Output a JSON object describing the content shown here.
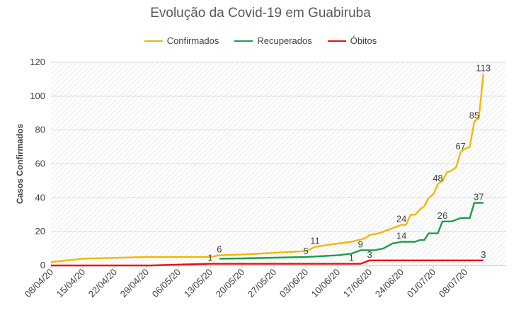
{
  "chart_data": {
    "type": "line",
    "title": "Evolução da Covid-19 em Guabiruba",
    "xlabel": "",
    "ylabel": "Casos Confirmados",
    "ylim": [
      0,
      120
    ],
    "yticks": [
      0,
      20,
      40,
      60,
      80,
      100,
      120
    ],
    "xlim": [
      "2020-04-08",
      "2020-07-17"
    ],
    "xticks": [
      "08/04/20",
      "15/04/20",
      "22/04/20",
      "29/04/20",
      "06/05/20",
      "13/05/20",
      "20/05/20",
      "27/05/20",
      "03/06/20",
      "10/06/20",
      "17/06/20",
      "24/06/20",
      "01/07/20",
      "08/07/20"
    ],
    "legend_position": "top",
    "grid": "diagonal hatched plot area",
    "series": [
      {
        "name": "Confirmados",
        "color": "#F2B705",
        "points": [
          [
            "2020-04-08",
            2
          ],
          [
            "2020-04-15",
            4
          ],
          [
            "2020-04-22",
            4.5
          ],
          [
            "2020-04-29",
            5
          ],
          [
            "2020-05-06",
            5
          ],
          [
            "2020-05-13",
            5
          ],
          [
            "2020-05-15",
            6
          ],
          [
            "2020-05-20",
            6.5
          ],
          [
            "2020-05-27",
            7.5
          ],
          [
            "2020-06-03",
            8.5
          ],
          [
            "2020-06-05",
            11
          ],
          [
            "2020-06-10",
            13
          ],
          [
            "2020-06-13",
            14
          ],
          [
            "2020-06-16",
            16
          ],
          [
            "2020-06-17",
            18
          ],
          [
            "2020-06-19",
            19
          ],
          [
            "2020-06-24",
            24
          ],
          [
            "2020-06-25",
            24
          ],
          [
            "2020-06-26",
            30
          ],
          [
            "2020-06-27",
            30
          ],
          [
            "2020-06-28",
            33
          ],
          [
            "2020-06-29",
            35
          ],
          [
            "2020-06-30",
            40
          ],
          [
            "2020-07-01",
            42
          ],
          [
            "2020-07-02",
            48
          ],
          [
            "2020-07-03",
            50
          ],
          [
            "2020-07-04",
            55
          ],
          [
            "2020-07-05",
            56
          ],
          [
            "2020-07-06",
            58
          ],
          [
            "2020-07-07",
            67
          ],
          [
            "2020-07-08",
            69
          ],
          [
            "2020-07-09",
            70
          ],
          [
            "2020-07-10",
            85
          ],
          [
            "2020-07-11",
            87
          ],
          [
            "2020-07-12",
            113
          ]
        ]
      },
      {
        "name": "Recuperados",
        "color": "#1E9E4B",
        "points": [
          [
            "2020-05-15",
            4
          ],
          [
            "2020-05-20",
            4.2
          ],
          [
            "2020-05-27",
            4.6
          ],
          [
            "2020-06-03",
            5
          ],
          [
            "2020-06-10",
            6
          ],
          [
            "2020-06-13",
            7
          ],
          [
            "2020-06-15",
            9
          ],
          [
            "2020-06-18",
            9
          ],
          [
            "2020-06-20",
            10
          ],
          [
            "2020-06-22",
            13
          ],
          [
            "2020-06-24",
            14
          ],
          [
            "2020-06-27",
            14
          ],
          [
            "2020-06-28",
            15
          ],
          [
            "2020-06-29",
            15
          ],
          [
            "2020-06-30",
            19
          ],
          [
            "2020-07-01",
            19
          ],
          [
            "2020-07-02",
            19
          ],
          [
            "2020-07-03",
            26
          ],
          [
            "2020-07-05",
            26
          ],
          [
            "2020-07-06",
            27
          ],
          [
            "2020-07-07",
            28
          ],
          [
            "2020-07-09",
            28
          ],
          [
            "2020-07-10",
            37
          ],
          [
            "2020-07-12",
            37
          ]
        ]
      },
      {
        "name": "Óbitos",
        "color": "#E8100B",
        "points": [
          [
            "2020-04-08",
            0
          ],
          [
            "2020-04-30",
            0
          ],
          [
            "2020-05-06",
            0.5
          ],
          [
            "2020-05-13",
            1
          ],
          [
            "2020-06-03",
            1
          ],
          [
            "2020-06-13",
            1
          ],
          [
            "2020-06-15",
            1
          ],
          [
            "2020-06-16",
            2
          ],
          [
            "2020-06-17",
            3
          ],
          [
            "2020-06-24",
            3
          ],
          [
            "2020-07-01",
            3
          ],
          [
            "2020-07-08",
            3
          ],
          [
            "2020-07-12",
            3
          ]
        ]
      }
    ],
    "data_labels": [
      {
        "text": "6",
        "x": "2020-05-15",
        "y": 6,
        "series": "Confirmados"
      },
      {
        "text": "11",
        "x": "2020-06-05",
        "y": 11,
        "series": "Confirmados"
      },
      {
        "text": "24",
        "x": "2020-06-24",
        "y": 24,
        "series": "Confirmados"
      },
      {
        "text": "48",
        "x": "2020-07-02",
        "y": 48,
        "series": "Confirmados"
      },
      {
        "text": "67",
        "x": "2020-07-07",
        "y": 67,
        "series": "Confirmados"
      },
      {
        "text": "85",
        "x": "2020-07-10",
        "y": 85,
        "series": "Confirmados"
      },
      {
        "text": "113",
        "x": "2020-07-12",
        "y": 113,
        "series": "Confirmados"
      },
      {
        "text": "5",
        "x": "2020-06-03",
        "y": 5,
        "series": "Recuperados"
      },
      {
        "text": "9",
        "x": "2020-06-15",
        "y": 9,
        "series": "Recuperados"
      },
      {
        "text": "14",
        "x": "2020-06-24",
        "y": 14,
        "series": "Recuperados"
      },
      {
        "text": "26",
        "x": "2020-07-03",
        "y": 26,
        "series": "Recuperados"
      },
      {
        "text": "37",
        "x": "2020-07-11",
        "y": 37,
        "series": "Recuperados"
      },
      {
        "text": "1",
        "x": "2020-05-13",
        "y": 1,
        "series": "Óbitos"
      },
      {
        "text": "1",
        "x": "2020-06-13",
        "y": 1,
        "series": "Óbitos"
      },
      {
        "text": "3",
        "x": "2020-06-17",
        "y": 3,
        "series": "Óbitos"
      },
      {
        "text": "3",
        "x": "2020-07-12",
        "y": 3,
        "series": "Óbitos"
      }
    ]
  }
}
